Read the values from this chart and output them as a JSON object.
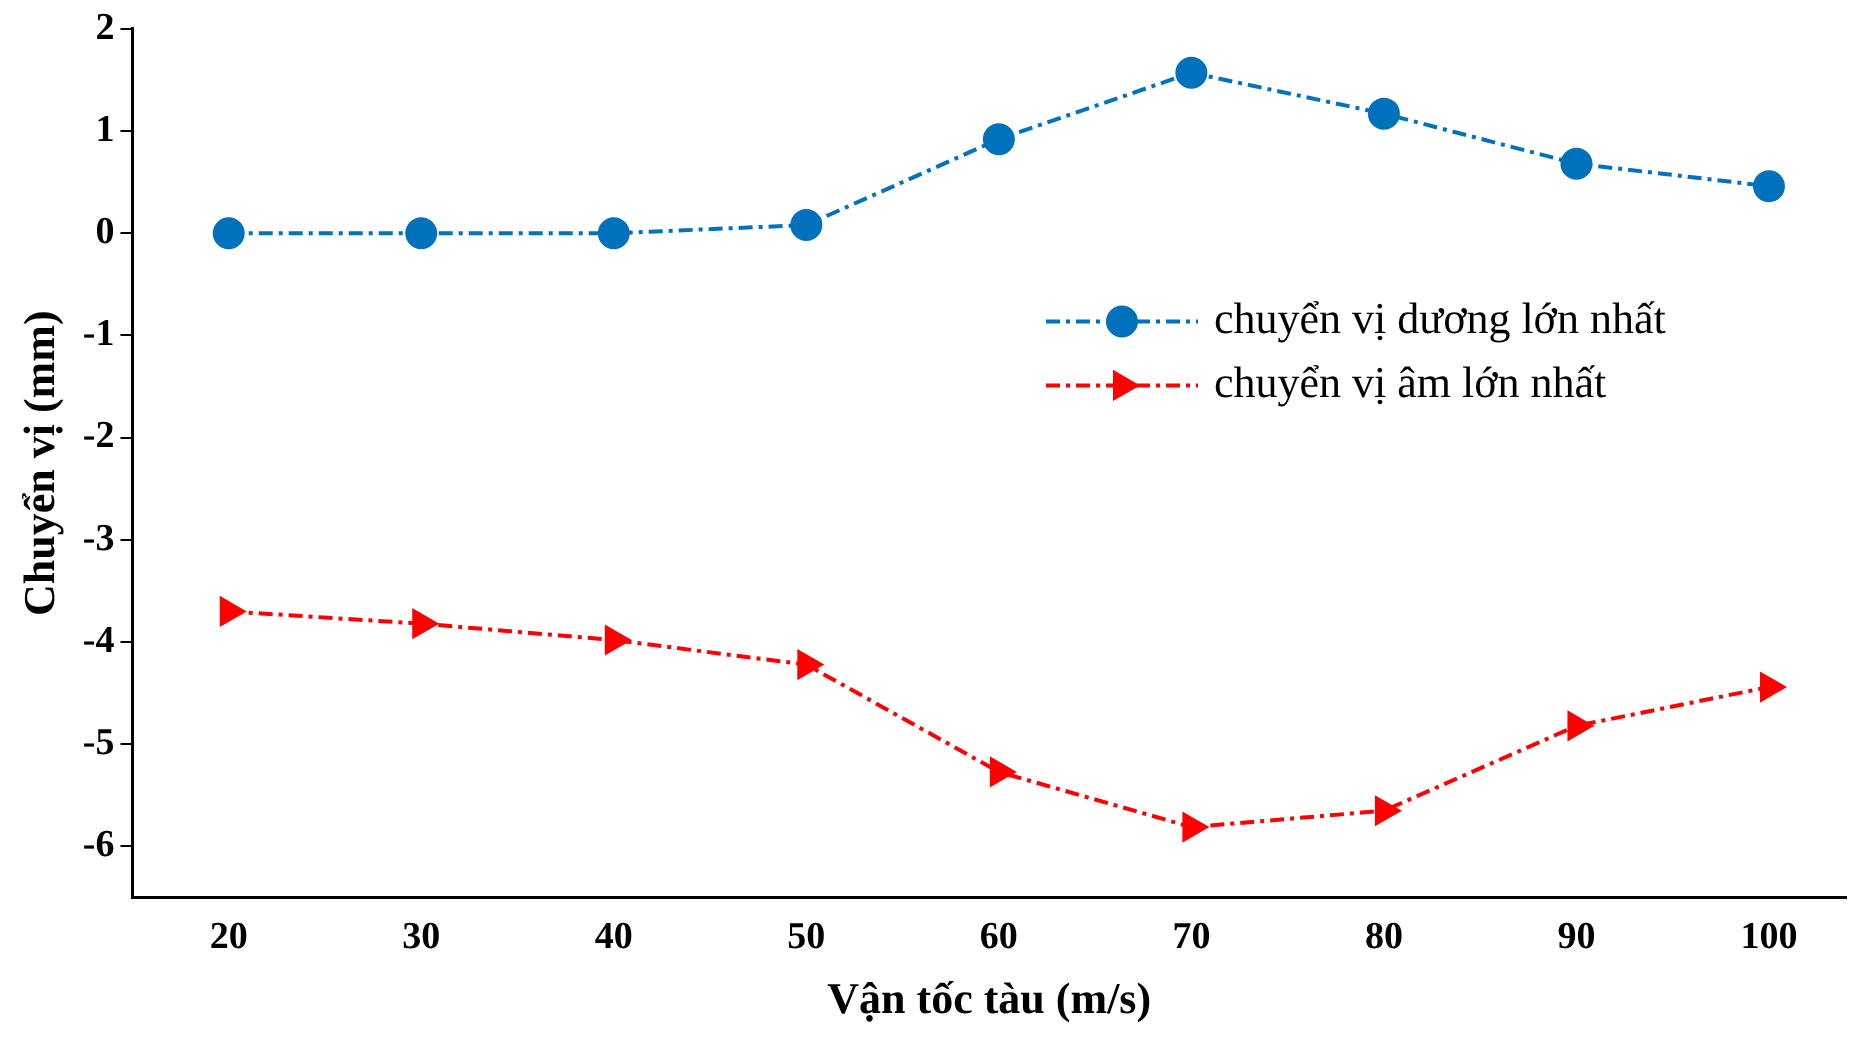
{
  "chart_data": {
    "type": "line",
    "xlabel": "Vận tốc tàu (m/s)",
    "ylabel": "Chuyển vị (mm)",
    "x": [
      20,
      30,
      40,
      50,
      60,
      70,
      80,
      90,
      100
    ],
    "series": [
      {
        "name": "chuyển vị dương lớn nhất",
        "color": "#0072bd",
        "marker": "circle",
        "values": [
          0,
          0,
          0,
          0.08,
          0.92,
          1.57,
          1.17,
          0.68,
          0.46
        ]
      },
      {
        "name": "chuyển vị âm lớn nhất",
        "color": "#ff0000",
        "marker": "triangle",
        "values": [
          -3.7,
          -3.82,
          -3.98,
          -4.22,
          -5.27,
          -5.81,
          -5.65,
          -4.82,
          -4.44
        ]
      }
    ],
    "xlim": [
      15,
      104
    ],
    "xticks": [
      20,
      30,
      40,
      50,
      60,
      70,
      80,
      90,
      100
    ],
    "ylim": [
      -6.5,
      2
    ],
    "yticks": [
      -6,
      -5,
      -4,
      -3,
      -2,
      -1,
      0,
      1,
      2
    ],
    "grid": false,
    "legend": "right",
    "line_style": "dashed"
  }
}
